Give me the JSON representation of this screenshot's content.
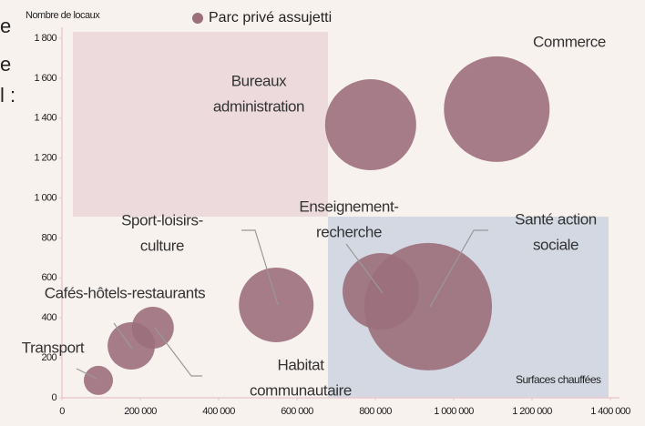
{
  "background_fragments": [
    "e",
    "e",
    "l :"
  ],
  "chart_data": {
    "type": "bubble",
    "ylabel": "Nombre de locaux",
    "xlabel": "Surfaces chauffées",
    "xlim": [
      0,
      1400000
    ],
    "ylim": [
      0,
      1800
    ],
    "xticks": [
      0,
      {
        "value": 200000,
        "label": "200 000"
      },
      {
        "value": 400000,
        "label": "400 000"
      },
      {
        "value": 600000,
        "label": "600 000"
      },
      {
        "value": 800000,
        "label": "800 000"
      },
      {
        "value": 1000000,
        "label": "1 000 000"
      },
      {
        "value": 1200000,
        "label": "1 200 000"
      },
      {
        "value": 1400000,
        "label": "1 400 000"
      }
    ],
    "yticks": [
      0,
      200,
      400,
      600,
      800,
      {
        "value": 1000,
        "label": "1 000"
      },
      {
        "value": 1200,
        "label": "1 200"
      },
      {
        "value": 1400,
        "label": "1 400"
      },
      {
        "value": 1600,
        "label": "1 600"
      },
      {
        "value": 1800,
        "label": "1 800"
      }
    ],
    "series": [
      {
        "name": "Parc privé assujetti",
        "color": "#9b6f7b",
        "labels": [
          [
            "Commerce"
          ],
          [
            "Bureaux",
            "administration"
          ],
          [
            "Enseignement-",
            "recherche"
          ],
          [
            "Santé action",
            "sociale"
          ],
          [
            "Sport-loisirs-",
            "culture"
          ],
          [
            "Habitat",
            "communautaire"
          ],
          [
            "Cafés-hôtels-restaurants"
          ],
          [
            "Transport"
          ]
        ],
        "x": [
          1110000,
          788000,
          814000,
          935000,
          547000,
          232000,
          177000,
          93000
        ],
        "values": [
          1445,
          1367,
          533,
          456,
          465,
          351,
          260,
          87
        ],
        "sizes": [
          58,
          50,
          42,
          70,
          41,
          23,
          26,
          16
        ]
      }
    ]
  }
}
